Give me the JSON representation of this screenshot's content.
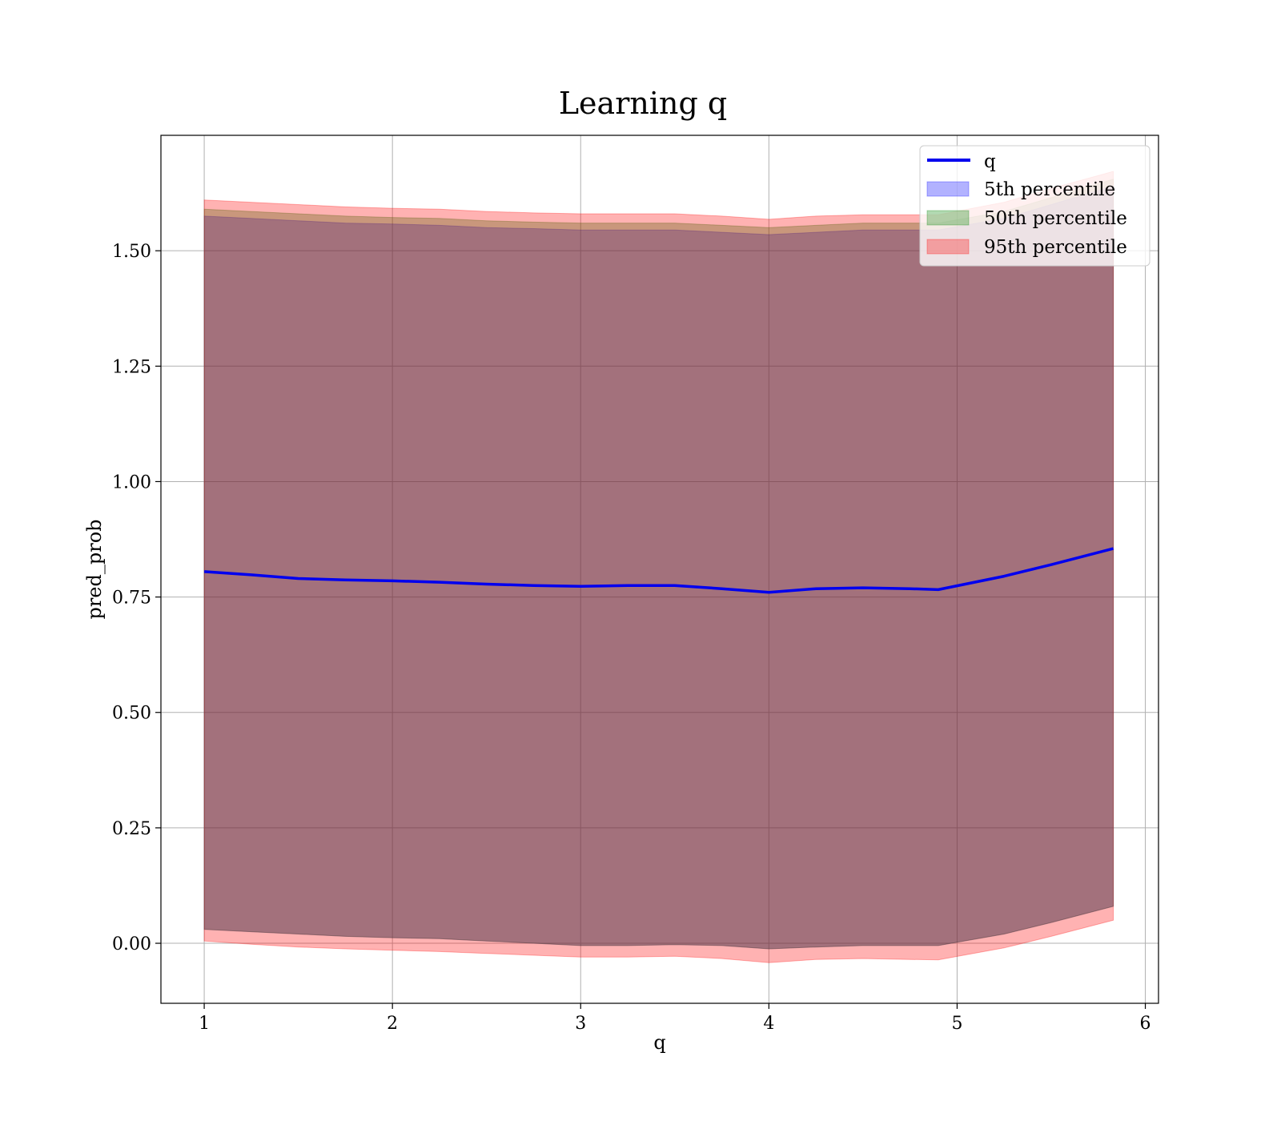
{
  "chart_data": {
    "type": "area",
    "title": "Learning q",
    "xlabel": "q",
    "ylabel": "pred_prob",
    "xlim": [
      0.77,
      6.07
    ],
    "ylim": [
      -0.13,
      1.75
    ],
    "xticks": [
      1,
      2,
      3,
      4,
      5,
      6
    ],
    "yticks": [
      0.0,
      0.25,
      0.5,
      0.75,
      1.0,
      1.25,
      1.5
    ],
    "xtick_labels": [
      "1",
      "2",
      "3",
      "4",
      "5",
      "6"
    ],
    "ytick_labels": [
      "0.00",
      "0.25",
      "0.50",
      "0.75",
      "1.00",
      "1.25",
      "1.50"
    ],
    "grid": true,
    "legend_position": "top-right",
    "x": [
      1.0,
      1.25,
      1.5,
      1.75,
      2.0,
      2.25,
      2.5,
      2.75,
      3.0,
      3.25,
      3.5,
      3.75,
      4.0,
      4.25,
      4.5,
      4.75,
      4.9,
      5.25,
      5.5,
      5.83
    ],
    "line": {
      "name": "q",
      "color": "#0000ee",
      "values": [
        0.805,
        0.798,
        0.79,
        0.787,
        0.785,
        0.782,
        0.778,
        0.775,
        0.773,
        0.775,
        0.775,
        0.768,
        0.76,
        0.768,
        0.77,
        0.768,
        0.766,
        0.795,
        0.82,
        0.855
      ]
    },
    "bands": [
      {
        "name": "5th percentile",
        "color": "#0000ff",
        "alpha": 0.3,
        "lower": [
          0.03,
          0.025,
          0.02,
          0.015,
          0.012,
          0.01,
          0.005,
          0.0,
          -0.005,
          -0.005,
          -0.003,
          -0.005,
          -0.012,
          -0.008,
          -0.005,
          -0.005,
          -0.005,
          0.02,
          0.045,
          0.08
        ],
        "upper": [
          1.575,
          1.57,
          1.565,
          1.56,
          1.558,
          1.555,
          1.55,
          1.548,
          1.545,
          1.545,
          1.545,
          1.54,
          1.535,
          1.54,
          1.545,
          1.545,
          1.545,
          1.57,
          1.6,
          1.64
        ]
      },
      {
        "name": "50th percentile",
        "color": "#008000",
        "alpha": 0.3,
        "lower": [
          0.03,
          0.025,
          0.02,
          0.015,
          0.012,
          0.01,
          0.005,
          0.0,
          -0.005,
          -0.005,
          -0.003,
          -0.005,
          -0.012,
          -0.008,
          -0.005,
          -0.005,
          -0.005,
          0.02,
          0.045,
          0.08
        ],
        "upper": [
          1.59,
          1.585,
          1.58,
          1.575,
          1.572,
          1.57,
          1.565,
          1.562,
          1.56,
          1.56,
          1.56,
          1.555,
          1.55,
          1.555,
          1.56,
          1.56,
          1.56,
          1.585,
          1.615,
          1.655
        ]
      },
      {
        "name": "95th percentile",
        "color": "#ff0000",
        "alpha": 0.3,
        "lower": [
          0.005,
          -0.002,
          -0.008,
          -0.012,
          -0.015,
          -0.018,
          -0.022,
          -0.026,
          -0.03,
          -0.03,
          -0.028,
          -0.033,
          -0.042,
          -0.035,
          -0.033,
          -0.035,
          -0.036,
          -0.01,
          0.015,
          0.05
        ],
        "upper": [
          1.61,
          1.605,
          1.6,
          1.595,
          1.592,
          1.59,
          1.585,
          1.582,
          1.58,
          1.58,
          1.58,
          1.575,
          1.568,
          1.575,
          1.578,
          1.578,
          1.578,
          1.605,
          1.635,
          1.672
        ]
      }
    ]
  }
}
